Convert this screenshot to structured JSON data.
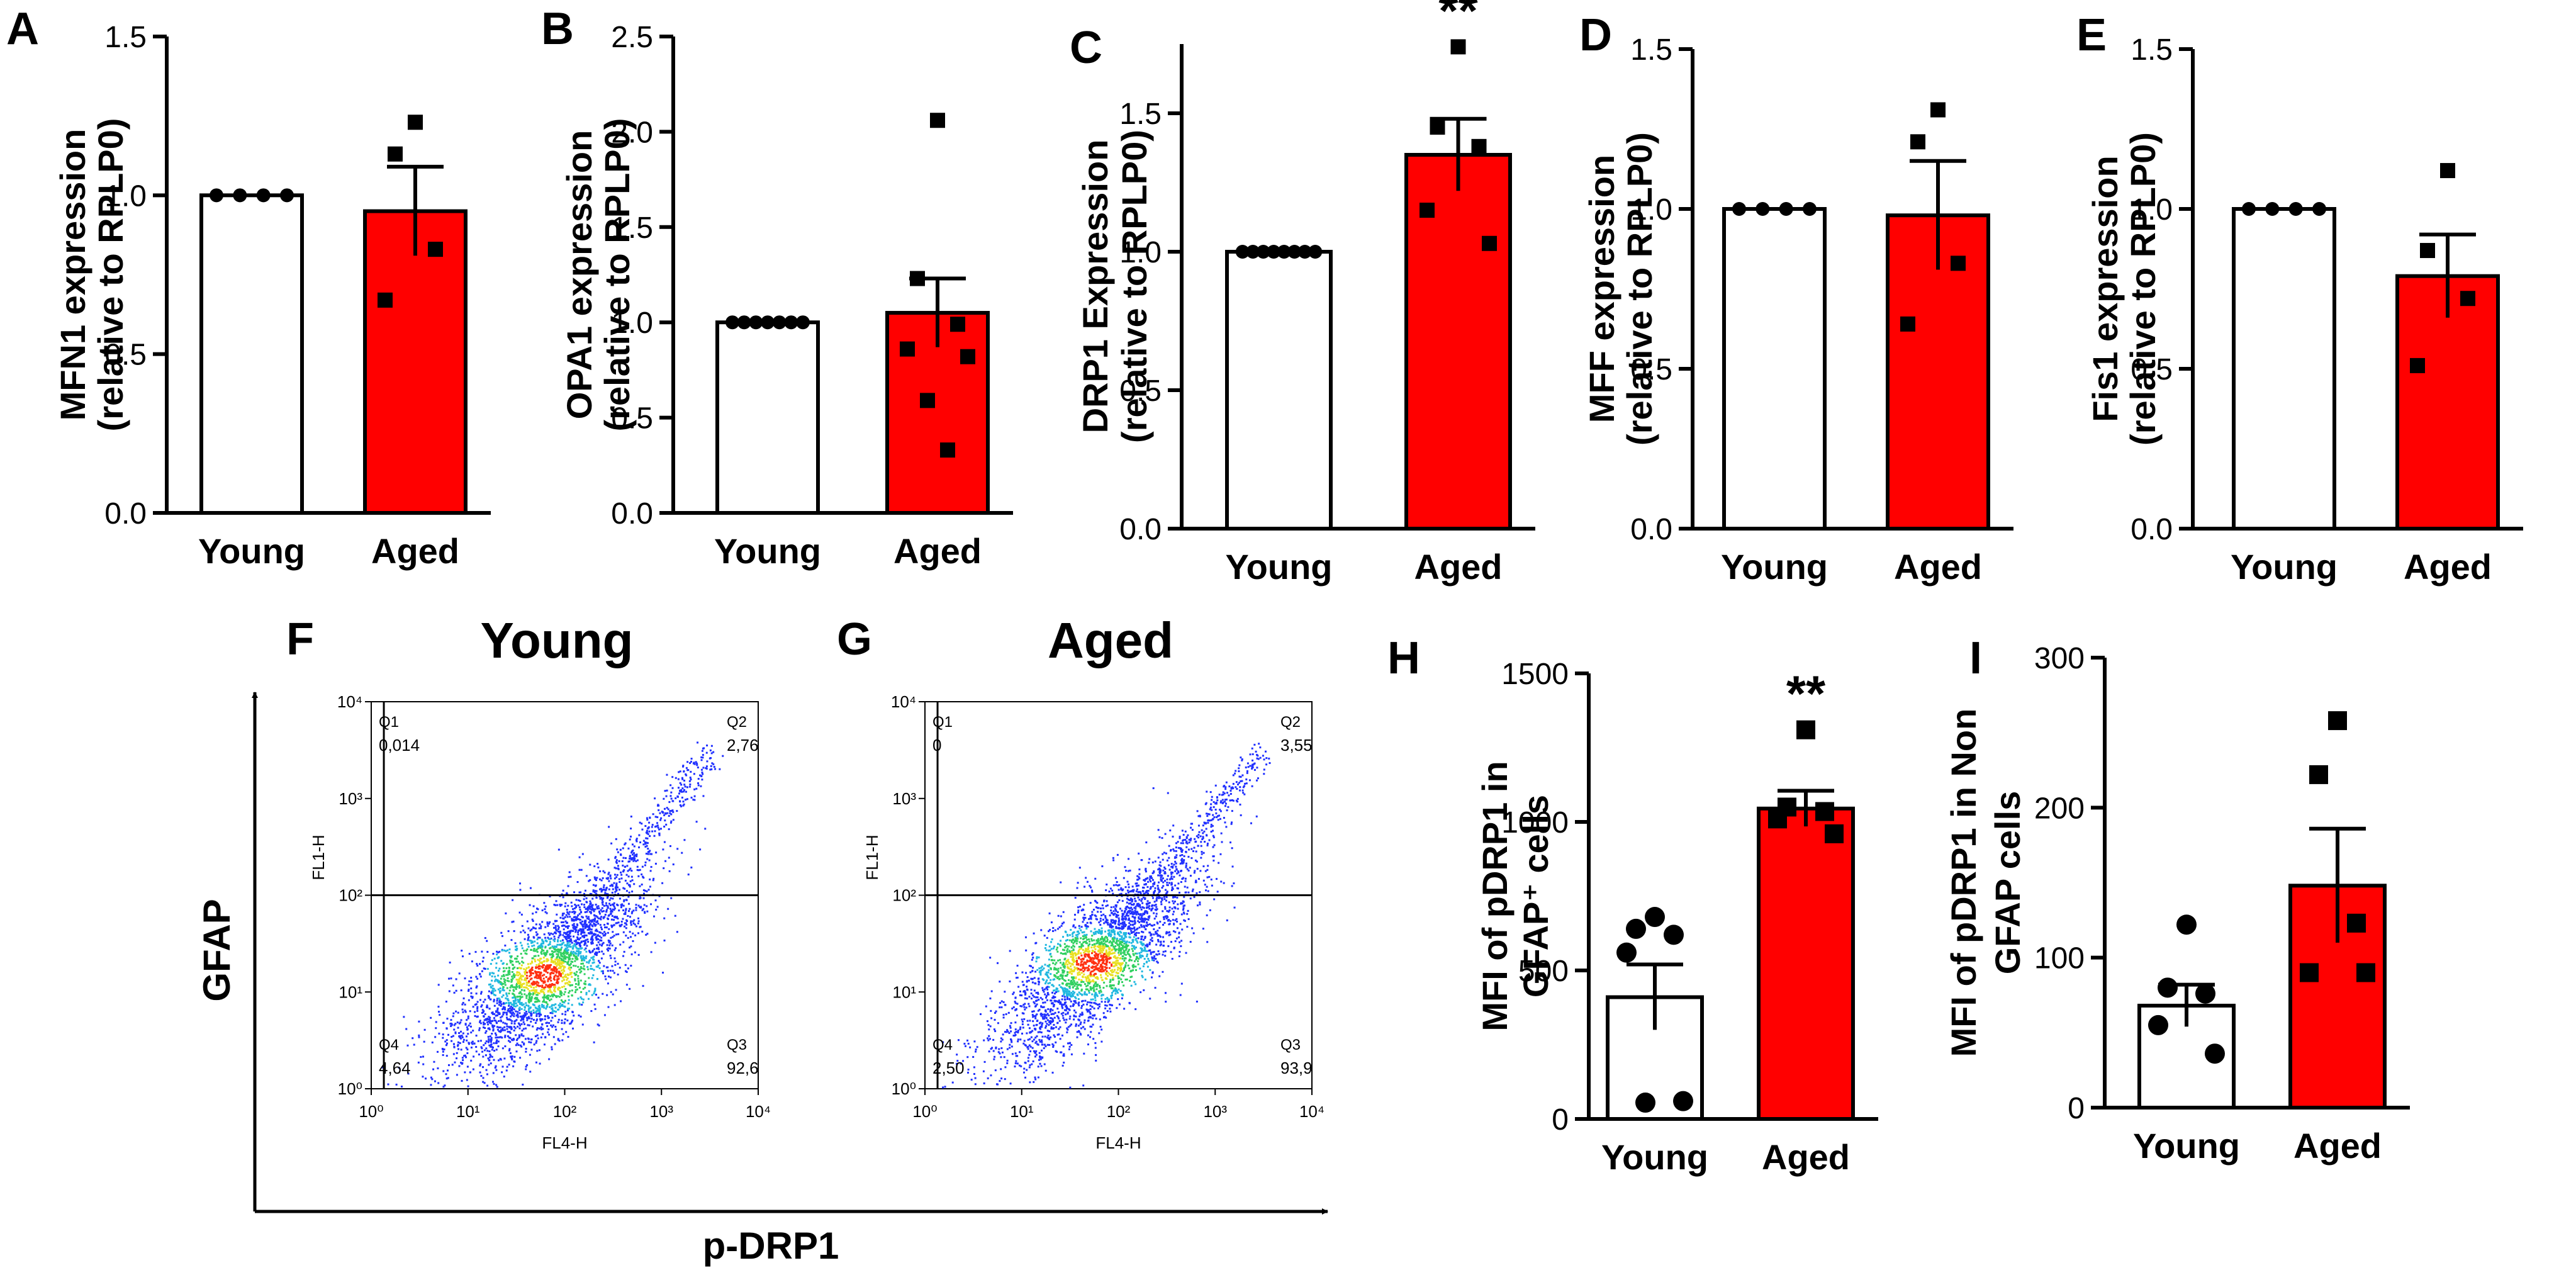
{
  "figure": {
    "panel_letters": [
      "A",
      "B",
      "C",
      "D",
      "E",
      "F",
      "G",
      "H",
      "I"
    ],
    "flow": {
      "y_axis_label": "GFAP",
      "x_axis_label": "p-DRP1",
      "plot_y_label": "FL1-H",
      "plot_x_label": "FL4-H",
      "tick_labels": [
        "10⁰",
        "10¹",
        "10²",
        "10³",
        "10⁴"
      ]
    }
  },
  "colors": {
    "young_fill": "#ffffff",
    "aged_fill": "#ff0000",
    "stroke": "#000000",
    "flow_low": "#2030ff",
    "flow_mid": "#30d060",
    "flow_high": "#ff3010"
  },
  "chart_data": [
    {
      "panel": "A",
      "type": "bar",
      "ylabel_line1": "MFN1 expression",
      "ylabel_line2": "(relative to RPLP0)",
      "categories": [
        "Young",
        "Aged"
      ],
      "ylim": [
        0,
        1.5
      ],
      "yticks": [
        "0.0",
        "0.5",
        "1.0",
        "1.5"
      ],
      "ytick_values": [
        0,
        0.5,
        1.0,
        1.5
      ],
      "means": [
        1.0,
        0.95
      ],
      "sem": [
        0,
        0.14
      ],
      "points": [
        [
          1.0,
          1.0,
          1.0,
          1.0
        ],
        [
          1.23,
          1.13,
          0.83,
          0.67
        ]
      ],
      "markers": [
        "circle",
        "square"
      ],
      "significance": ""
    },
    {
      "panel": "B",
      "type": "bar",
      "ylabel_line1": "OPA1 expression",
      "ylabel_line2": "(relative to RPLP0)",
      "categories": [
        "Young",
        "Aged"
      ],
      "ylim": [
        0,
        2.5
      ],
      "yticks": [
        "0.0",
        "0.5",
        "1.0",
        "1.5",
        "2.0",
        "2.5"
      ],
      "ytick_values": [
        0,
        0.5,
        1.0,
        1.5,
        2.0,
        2.5
      ],
      "means": [
        1.0,
        1.05
      ],
      "sem": [
        0,
        0.18
      ],
      "points": [
        [
          1.0,
          1.0,
          1.0,
          1.0,
          1.0,
          1.0,
          1.0
        ],
        [
          2.06,
          1.23,
          0.99,
          0.86,
          0.82,
          0.59,
          0.33
        ]
      ],
      "markers": [
        "circle",
        "square"
      ],
      "significance": ""
    },
    {
      "panel": "C",
      "type": "bar",
      "ylabel_line1": "DRP1 Expression",
      "ylabel_line2": "(relative to RPLP0)",
      "categories": [
        "Young",
        "Aged"
      ],
      "ylim": [
        0,
        1.75
      ],
      "yticks": [
        "0.0",
        "0.5",
        "1.0",
        "1.5"
      ],
      "ytick_values": [
        0,
        0.5,
        1.0,
        1.5
      ],
      "means": [
        1.0,
        1.35
      ],
      "sem": [
        0,
        0.13
      ],
      "points": [
        [
          1.0,
          1.0,
          1.0,
          1.0,
          1.0,
          1.0,
          1.0,
          1.0
        ],
        [
          1.74,
          1.45,
          1.38,
          1.15,
          1.03
        ]
      ],
      "markers": [
        "circle",
        "square"
      ],
      "significance": "**"
    },
    {
      "panel": "D",
      "type": "bar",
      "ylabel_line1": "MFF expression",
      "ylabel_line2": "(relative to RPLP0)",
      "categories": [
        "Young",
        "Aged"
      ],
      "ylim": [
        0,
        1.5
      ],
      "yticks": [
        "0.0",
        "0.5",
        "1.0",
        "1.5"
      ],
      "ytick_values": [
        0,
        0.5,
        1.0,
        1.5
      ],
      "means": [
        1.0,
        0.98
      ],
      "sem": [
        0,
        0.17
      ],
      "points": [
        [
          1.0,
          1.0,
          1.0,
          1.0
        ],
        [
          1.31,
          1.21,
          0.83,
          0.64
        ]
      ],
      "markers": [
        "circle",
        "square"
      ],
      "significance": ""
    },
    {
      "panel": "E",
      "type": "bar",
      "ylabel_line1": "Fis1 expression",
      "ylabel_line2": "(relative to RPLP0)",
      "categories": [
        "Young",
        "Aged"
      ],
      "ylim": [
        0,
        1.5
      ],
      "yticks": [
        "0.0",
        "0.5",
        "1.0",
        "1.5"
      ],
      "ytick_values": [
        0,
        0.5,
        1.0,
        1.5
      ],
      "means": [
        1.0,
        0.79
      ],
      "sem": [
        0,
        0.13
      ],
      "points": [
        [
          1.0,
          1.0,
          1.0,
          1.0
        ],
        [
          1.12,
          0.87,
          0.72,
          0.51
        ]
      ],
      "markers": [
        "circle",
        "square"
      ],
      "significance": ""
    },
    {
      "panel": "H",
      "type": "bar",
      "ylabel_line1": "MFI of pDRP1 in",
      "ylabel_line2": "GFAP⁺ cells",
      "categories": [
        "Young",
        "Aged"
      ],
      "ylim": [
        0,
        1500
      ],
      "yticks": [
        "0",
        "500",
        "1000",
        "1500"
      ],
      "ytick_values": [
        0,
        500,
        1000,
        1500
      ],
      "means": [
        410,
        1045
      ],
      "sem": [
        110,
        60
      ],
      "points": [
        [
          680,
          640,
          620,
          560,
          60,
          55
        ],
        [
          1310,
          1050,
          1035,
          1010,
          960
        ]
      ],
      "markers": [
        "circle",
        "square"
      ],
      "significance": "**"
    },
    {
      "panel": "I",
      "type": "bar",
      "ylabel_line1": "MFI of pDRP1 in Non",
      "ylabel_line2": "GFAP cells",
      "categories": [
        "Young",
        "Aged"
      ],
      "ylim": [
        0,
        300
      ],
      "yticks": [
        "0",
        "100",
        "200",
        "300"
      ],
      "ytick_values": [
        0,
        100,
        200,
        300
      ],
      "means": [
        68,
        148
      ],
      "sem": [
        14,
        38
      ],
      "points": [
        [
          122,
          80,
          76,
          55,
          36
        ],
        [
          258,
          222,
          123,
          90,
          90
        ]
      ],
      "markers": [
        "circle",
        "square"
      ],
      "significance": ""
    },
    {
      "panel": "F",
      "type": "scatter",
      "title": "Young",
      "quadrants": [
        {
          "name": "Q1",
          "value": "0,014"
        },
        {
          "name": "Q2",
          "value": "2,76"
        },
        {
          "name": "Q4",
          "value": "4,64"
        },
        {
          "name": "Q3",
          "value": "92,6"
        }
      ],
      "x_scale": "log",
      "y_scale": "log",
      "xlim": [
        1,
        10000
      ],
      "ylim": [
        1,
        10000
      ],
      "gate_x": 1.35,
      "gate_y": 100,
      "population": {
        "center_x": 60,
        "center_y": 15,
        "spread_log": 0.55,
        "tail_to_x": 3000,
        "tail_to_y": 3000
      }
    },
    {
      "panel": "G",
      "type": "scatter",
      "title": "Aged",
      "quadrants": [
        {
          "name": "Q1",
          "value": "0"
        },
        {
          "name": "Q2",
          "value": "3,55"
        },
        {
          "name": "Q4",
          "value": "2,50"
        },
        {
          "name": "Q3",
          "value": "93,9"
        }
      ],
      "x_scale": "log",
      "y_scale": "log",
      "xlim": [
        1,
        10000
      ],
      "ylim": [
        1,
        10000
      ],
      "gate_x": 1.35,
      "gate_y": 100,
      "population": {
        "center_x": 55,
        "center_y": 20,
        "spread_log": 0.55,
        "tail_to_x": 3000,
        "tail_to_y": 3000
      }
    }
  ]
}
